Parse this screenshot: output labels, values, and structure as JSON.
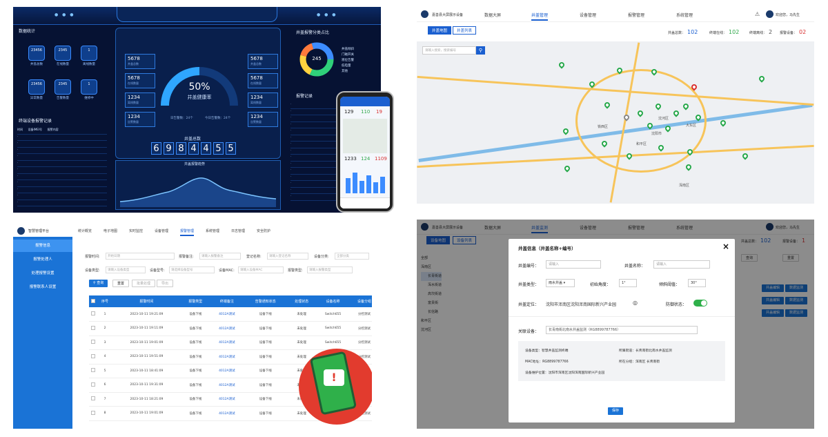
{
  "dashboard": {
    "left_title": "数据统计",
    "hex_values": [
      "23456",
      "2345",
      "1",
      "23456",
      "2345",
      "1"
    ],
    "hex_labels": [
      "井盖总数",
      "在线数量",
      "离线数量",
      "异常数量",
      "告警数量",
      "维修中"
    ],
    "left_table_title": "终端设备报警记录",
    "left_table_header": [
      "时间",
      "设备IMEI号",
      "报警内容"
    ],
    "gauge_percent": "50%",
    "gauge_label": "井盖健康率",
    "left_values": [
      {
        "v": "5678",
        "l": "井盖总数"
      },
      {
        "v": "5678",
        "l": "在线数量"
      },
      {
        "v": "1234",
        "l": "离线数量"
      },
      {
        "v": "1234",
        "l": "告警数量"
      }
    ],
    "right_values": [
      {
        "v": "5678",
        "l": "井盖总数"
      },
      {
        "v": "5678",
        "l": "在线数量"
      },
      {
        "v": "1234",
        "l": "离线数量"
      },
      {
        "v": "1234",
        "l": "告警数量"
      }
    ],
    "gauge_sub": [
      "日告警数：24个",
      "今日告警数：24个"
    ],
    "total_title": "井盖总数",
    "total_digits": [
      "6",
      "9",
      "8",
      "4",
      "4",
      "5",
      "5"
    ],
    "trend_title": "井盖报警趋势",
    "donut_title": "井盖报警分类占比",
    "donut_center": "245",
    "legend": [
      "井盖倾斜",
      "门磁开关",
      "液位告警",
      "低电量",
      "其他"
    ],
    "right_table_title": "报警记录",
    "phone_values": [
      "129",
      "110",
      "19",
      "1233",
      "124",
      "1109"
    ]
  },
  "map_panel": {
    "brand": "嘉善县大屏展示设备",
    "nav": [
      "数据大屏",
      "井盖管理",
      "设备管理",
      "报警管理",
      "系统管理"
    ],
    "active_nav": "井盖管理",
    "user": "欢迎您，马先生",
    "tabs": [
      "井盖地图",
      "井盖列表"
    ],
    "search_placeholder": "请输入搜索，搜索编号",
    "stats": [
      {
        "l": "井盖总数：",
        "v": "102"
      },
      {
        "l": "终端在线：",
        "v": "102"
      },
      {
        "l": "终端离线：",
        "v": "2"
      },
      {
        "l": "报警设备：",
        "v": "02"
      }
    ],
    "place_labels": [
      "铁西区",
      "沈河区",
      "大东区",
      "和平区",
      "浑南区",
      "沈阳市"
    ]
  },
  "alarm_panel": {
    "brand": "智慧管理平台",
    "nav": [
      "统计概览",
      "电子地图",
      "实时监控",
      "设备管理",
      "报警管理",
      "系统管理",
      "日志管理",
      "安全防护"
    ],
    "active_nav": "报警管理",
    "side": [
      "报警信息",
      "报警处理人",
      "处理报警设置",
      "报警联系人设置"
    ],
    "filters": [
      {
        "l": "报警时间:",
        "p": "开始日期"
      },
      {
        "l": "报警备注:",
        "p": "请输入报警备注"
      },
      {
        "l": "登记名称:",
        "p": "请输入登记名称"
      },
      {
        "l": "设备分类:",
        "p": "全部分类"
      },
      {
        "l": "设备类型:",
        "p": "请输入设备类型"
      },
      {
        "l": "设备型号:",
        "p": "请选择设备型号"
      },
      {
        "l": "设备MAC:",
        "p": "请输入设备MAC"
      },
      {
        "l": "报警类型:",
        "p": "请输入报警类型"
      }
    ],
    "buttons": [
      "查询",
      "重置",
      "批量处理",
      "导出"
    ],
    "headers": [
      "序号",
      "报警时间",
      "报警类型",
      "终端备注",
      "告警通知状态",
      "处理状态",
      "设备名称",
      "设备分组"
    ],
    "rows": [
      [
        "1",
        "2023-10-11 19:21:09",
        "设备下线",
        "4012A测试",
        "设备下线",
        "未处理",
        "Switch655",
        "分控测试"
      ],
      [
        "2",
        "2023-10-11 19:11:09",
        "设备下线",
        "4012A测试",
        "设备下线",
        "未处理",
        "Switch655",
        "分控测试"
      ],
      [
        "3",
        "2023-10-11 19:01:09",
        "设备下线",
        "4012A测试",
        "设备下线",
        "未处理",
        "Switch655",
        "分控测试"
      ],
      [
        "4",
        "2023-10-11 19:51:09",
        "设备下线",
        "4012A测试",
        "设备下线",
        "未处理",
        "Switch655",
        "分控测试"
      ],
      [
        "5",
        "2023-10-11 18:41:09",
        "设备下线",
        "4012A测试",
        "设备下线",
        "未处理",
        "Switch655",
        "分控测试"
      ],
      [
        "6",
        "2023-10-11 19:31:09",
        "设备下线",
        "4012A测试",
        "设备下线",
        "未处理",
        "Switch655",
        "分控测试"
      ],
      [
        "7",
        "2023-10-11 18:21:09",
        "设备下线",
        "4012A测试",
        "设备下线",
        "未处理",
        "Switch655",
        "分控测试"
      ],
      [
        "8",
        "2023-10-11 19:01:09",
        "设备下线",
        "4012A测试",
        "设备下线",
        "未处理",
        "Switch655",
        "分控测试"
      ]
    ]
  },
  "dialog_panel": {
    "brand": "嘉善县大屏展示设备",
    "nav": [
      "数据大屏",
      "井盖监测",
      "设备管理",
      "报警管理",
      "系统管理"
    ],
    "active_nav": "井盖监测",
    "user": "欢迎您，马先生",
    "tabs": [
      "设备地图",
      "设备列表"
    ],
    "tree": [
      "全部",
      "浑南区",
      "长青街道",
      "浑水街道",
      "高坎街道",
      "富贵街",
      "长信路",
      "和平区",
      "沈河区"
    ],
    "stats": [
      {
        "l": "井盖总数：",
        "v": "102"
      },
      {
        "l": "报警设备：",
        "v": "1"
      }
    ],
    "btn_search": "查询",
    "btn_reset": "重置",
    "row_actions": [
      "井盖编辑",
      "数据监测"
    ],
    "dialog": {
      "title": "井盖信息（井盖名称+编号）",
      "f_no": "井盖编号：",
      "p_no": "请输入",
      "f_name": "井盖名称：",
      "p_name": "请输入",
      "f_type": "井盖类型：",
      "v_type": "雨水井盖",
      "f_angle": "初始角度：",
      "v_angle": "1°",
      "f_thresh": "倾斜阈值：",
      "v_thresh": "30°",
      "f_loc": "井盖定位：",
      "v_loc": "沈阳市浑南区沈阳浑南国际新兴产业园",
      "f_guard": "防御状态：",
      "f_dev": "关联设备：",
      "v_dev": "长青南街北南水井盖监测（RG8899787766）",
      "i1": "设备类型：智慧井盖监测终端",
      "i2": "所属街道：长青南街北南水井盖监测",
      "i3": "MAC地址：RG8899787766",
      "i4": "所在分组：浑南区 长青南街",
      "i5": "设备维护位置：沈阳市浑南区沈阳浑南国际新兴产业园",
      "save": "保存"
    }
  }
}
